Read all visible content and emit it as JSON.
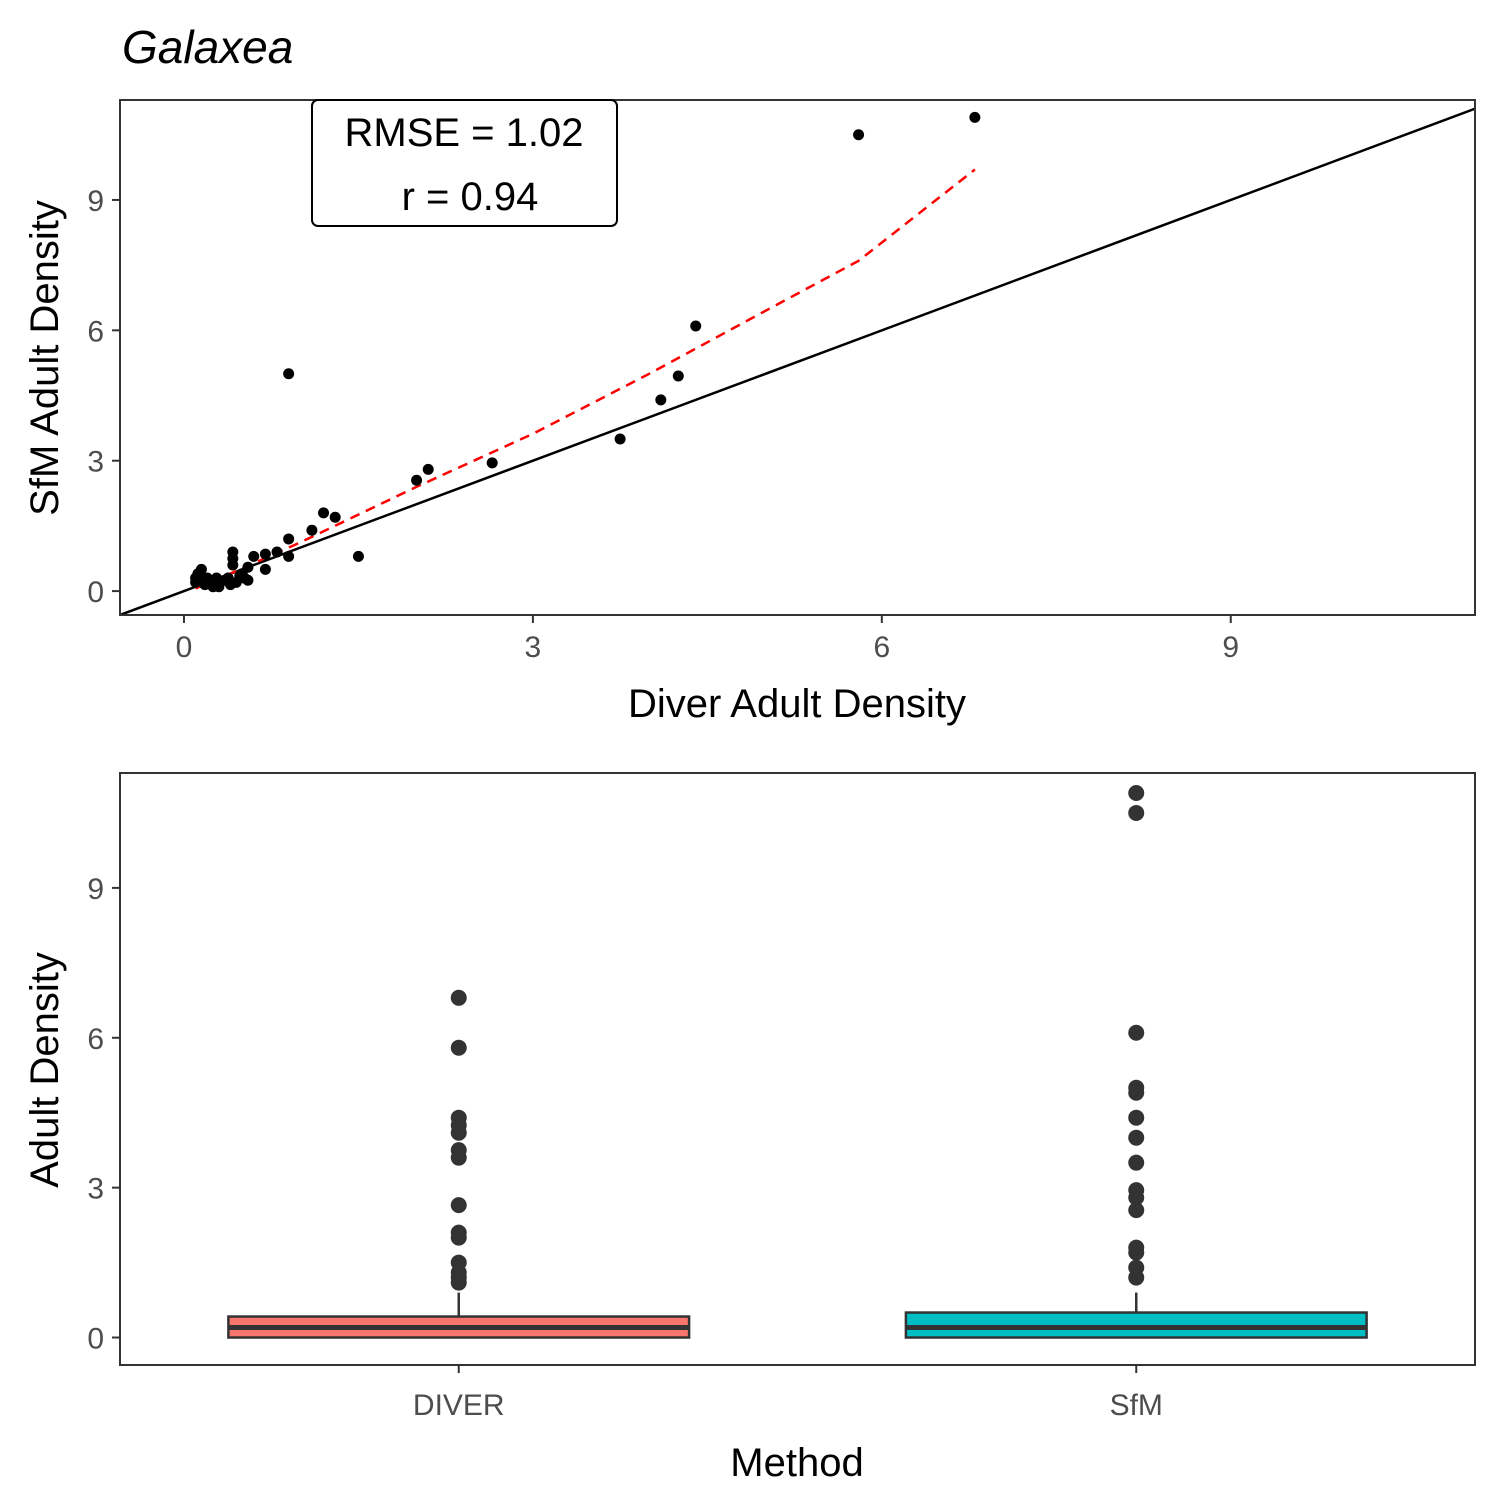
{
  "colors": {
    "diver": "#F8766D",
    "sfm": "#00BFC4",
    "fit_line": "#FF0000",
    "identity_line": "#000000",
    "points": "#000000",
    "outliers": "#333333"
  },
  "chart_data": [
    {
      "type": "scatter",
      "title": "Galaxea",
      "xlabel": "Diver Adult Density",
      "ylabel": "SfM Adult Density",
      "xlim": [
        -0.55,
        11.1
      ],
      "ylim": [
        -0.55,
        11.3
      ],
      "xticks": [
        "0",
        "3",
        "6",
        "9"
      ],
      "yticks": [
        "0",
        "3",
        "6",
        "9"
      ],
      "grid": false,
      "annotation": {
        "line1": "RMSE = 1.02",
        "line2": "r = 0.94"
      },
      "identity_line": {
        "slope": 1,
        "intercept": 0
      },
      "fit_line": [
        [
          0.1,
          0.06
        ],
        [
          0.5,
          0.52
        ],
        [
          1.0,
          1.12
        ],
        [
          2.0,
          2.4
        ],
        [
          3.0,
          3.62
        ],
        [
          4.0,
          5.0
        ],
        [
          5.0,
          6.45
        ],
        [
          5.8,
          7.6
        ],
        [
          6.8,
          9.7
        ]
      ],
      "points": [
        [
          0.1,
          0.2
        ],
        [
          0.1,
          0.3
        ],
        [
          0.12,
          0.4
        ],
        [
          0.15,
          0.5
        ],
        [
          0.15,
          0.25
        ],
        [
          0.18,
          0.15
        ],
        [
          0.2,
          0.3
        ],
        [
          0.22,
          0.2
        ],
        [
          0.25,
          0.1
        ],
        [
          0.28,
          0.3
        ],
        [
          0.3,
          0.2
        ],
        [
          0.3,
          0.1
        ],
        [
          0.35,
          0.25
        ],
        [
          0.38,
          0.3
        ],
        [
          0.4,
          0.15
        ],
        [
          0.42,
          0.6
        ],
        [
          0.42,
          0.9
        ],
        [
          0.42,
          0.75
        ],
        [
          0.45,
          0.2
        ],
        [
          0.48,
          0.35
        ],
        [
          0.5,
          0.4
        ],
        [
          0.52,
          0.3
        ],
        [
          0.55,
          0.25
        ],
        [
          0.55,
          0.55
        ],
        [
          0.6,
          0.8
        ],
        [
          0.7,
          0.5
        ],
        [
          0.7,
          0.85
        ],
        [
          0.8,
          0.9
        ],
        [
          0.9,
          1.2
        ],
        [
          0.9,
          0.8
        ],
        [
          0.9,
          5.0
        ],
        [
          1.1,
          1.4
        ],
        [
          1.2,
          1.8
        ],
        [
          1.3,
          1.7
        ],
        [
          1.5,
          0.8
        ],
        [
          2.0,
          2.55
        ],
        [
          2.1,
          2.8
        ],
        [
          2.65,
          2.95
        ],
        [
          3.75,
          3.5
        ],
        [
          4.1,
          4.4
        ],
        [
          4.25,
          4.95
        ],
        [
          4.4,
          6.1
        ],
        [
          5.8,
          10.5
        ],
        [
          6.8,
          10.9
        ]
      ]
    },
    {
      "type": "box",
      "xlabel": "Method",
      "ylabel": "Adult Density",
      "ylim": [
        -0.55,
        11.3
      ],
      "yticks": [
        "0",
        "3",
        "6",
        "9"
      ],
      "categories": [
        "DIVER",
        "SfM"
      ],
      "boxes": [
        {
          "name": "DIVER",
          "q1": 0.0,
          "median": 0.2,
          "q3": 0.42,
          "whisker_low": 0.0,
          "whisker_high": 0.9,
          "outliers": [
            1.1,
            1.2,
            1.3,
            1.5,
            2.0,
            2.1,
            2.65,
            3.6,
            3.75,
            4.1,
            4.25,
            4.4,
            5.8,
            6.8
          ]
        },
        {
          "name": "SfM",
          "q1": 0.0,
          "median": 0.2,
          "q3": 0.5,
          "whisker_low": 0.0,
          "whisker_high": 0.9,
          "outliers": [
            1.2,
            1.4,
            1.7,
            1.8,
            2.55,
            2.8,
            2.95,
            3.5,
            4.0,
            4.4,
            4.9,
            5.0,
            6.1,
            10.5,
            10.9
          ]
        }
      ]
    }
  ]
}
